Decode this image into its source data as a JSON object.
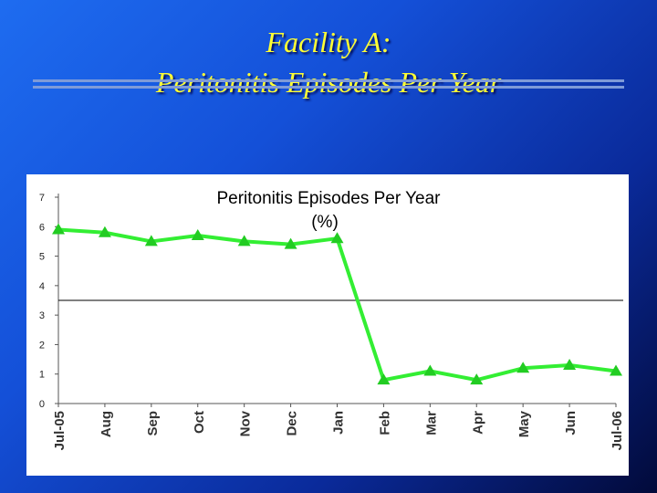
{
  "slide": {
    "title_line1": "Facility A:",
    "title_line2": "Peritonitis Episodes Per Year"
  },
  "chart_data": {
    "type": "line",
    "title": "Peritonitis Episodes Per Year",
    "subtitle": "(%)",
    "categories": [
      "Jul-05",
      "Aug",
      "Sep",
      "Oct",
      "Nov",
      "Dec",
      "Jan",
      "Feb",
      "Mar",
      "Apr",
      "May",
      "Jun",
      "Jul-06"
    ],
    "series": [
      {
        "values": [
          5.9,
          5.8,
          5.5,
          5.7,
          5.5,
          5.4,
          5.6,
          0.8,
          1.1,
          0.8,
          1.2,
          1.3,
          1.1
        ],
        "color": "#33ee33",
        "marker": "triangle"
      }
    ],
    "reference_line": 3.5,
    "ylim": [
      0,
      7
    ],
    "yticks": [
      0,
      1,
      2,
      3,
      4,
      5,
      6,
      7
    ],
    "xlabel": "",
    "ylabel": "",
    "grid": false,
    "legend": "none"
  },
  "colors": {
    "series_line": "#33ee33",
    "series_marker": "#22cc22",
    "reference_line": "#000000",
    "title_text": "#ffff33"
  }
}
